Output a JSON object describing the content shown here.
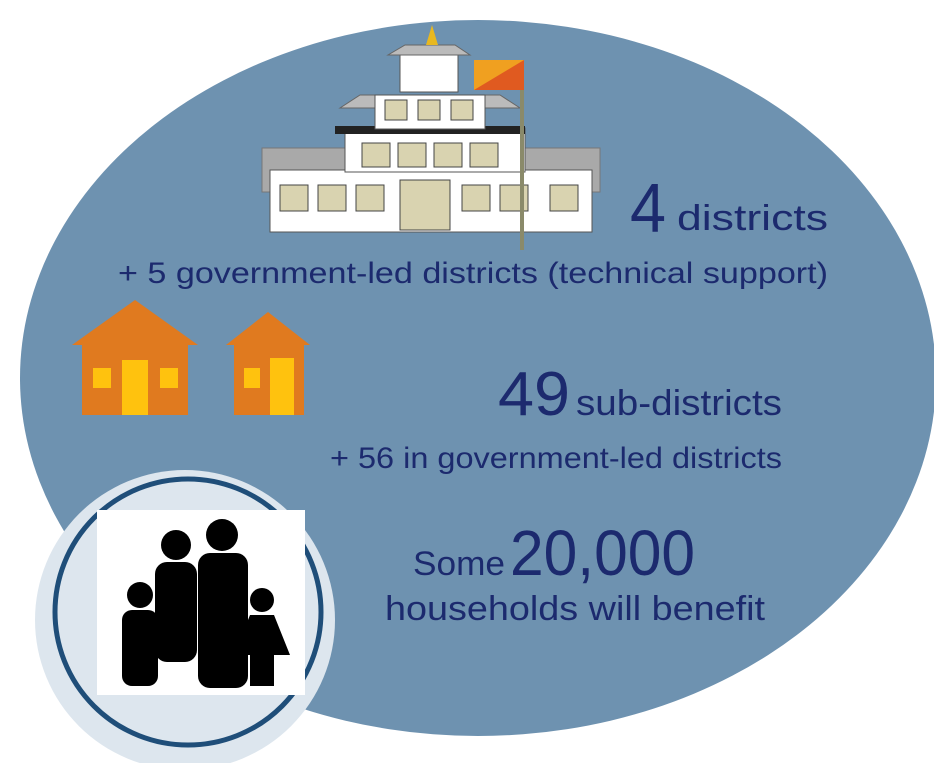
{
  "stats": [
    {
      "number": "4",
      "unit": "districts",
      "note": "+ 5 government-led districts (technical support)"
    },
    {
      "number": "49",
      "unit": "sub-districts",
      "note": "+ 56 in government-led districts"
    },
    {
      "prefix": "Some",
      "number": "20,000",
      "note": "households will benefit"
    }
  ]
}
